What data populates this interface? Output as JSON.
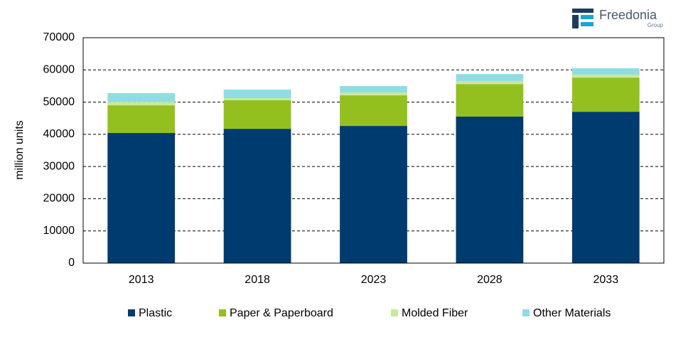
{
  "logo": {
    "name": "Freedonia",
    "sub": "Group"
  },
  "chart_data": {
    "type": "stacked_bar",
    "y_label": "million units",
    "categories": [
      "2013",
      "2018",
      "2023",
      "2028",
      "2033"
    ],
    "series": [
      {
        "name": "Plastic",
        "color": "#003b6f",
        "values": [
          40400,
          41700,
          42600,
          45500,
          47000
        ]
      },
      {
        "name": "Paper & Paperboard",
        "color": "#93c01f",
        "values": [
          8600,
          8900,
          9500,
          10100,
          10600
        ]
      },
      {
        "name": "Molded Fiber",
        "color": "#cbe89a",
        "values": [
          1100,
          600,
          900,
          900,
          900
        ]
      },
      {
        "name": "Other Materials",
        "color": "#8fdde3",
        "values": [
          2700,
          2700,
          2000,
          2200,
          2000
        ]
      }
    ],
    "ylim": [
      0,
      70000
    ],
    "yticks": [
      0,
      10000,
      20000,
      30000,
      40000,
      50000,
      60000,
      70000
    ],
    "grid": true,
    "legend": "bottom"
  }
}
